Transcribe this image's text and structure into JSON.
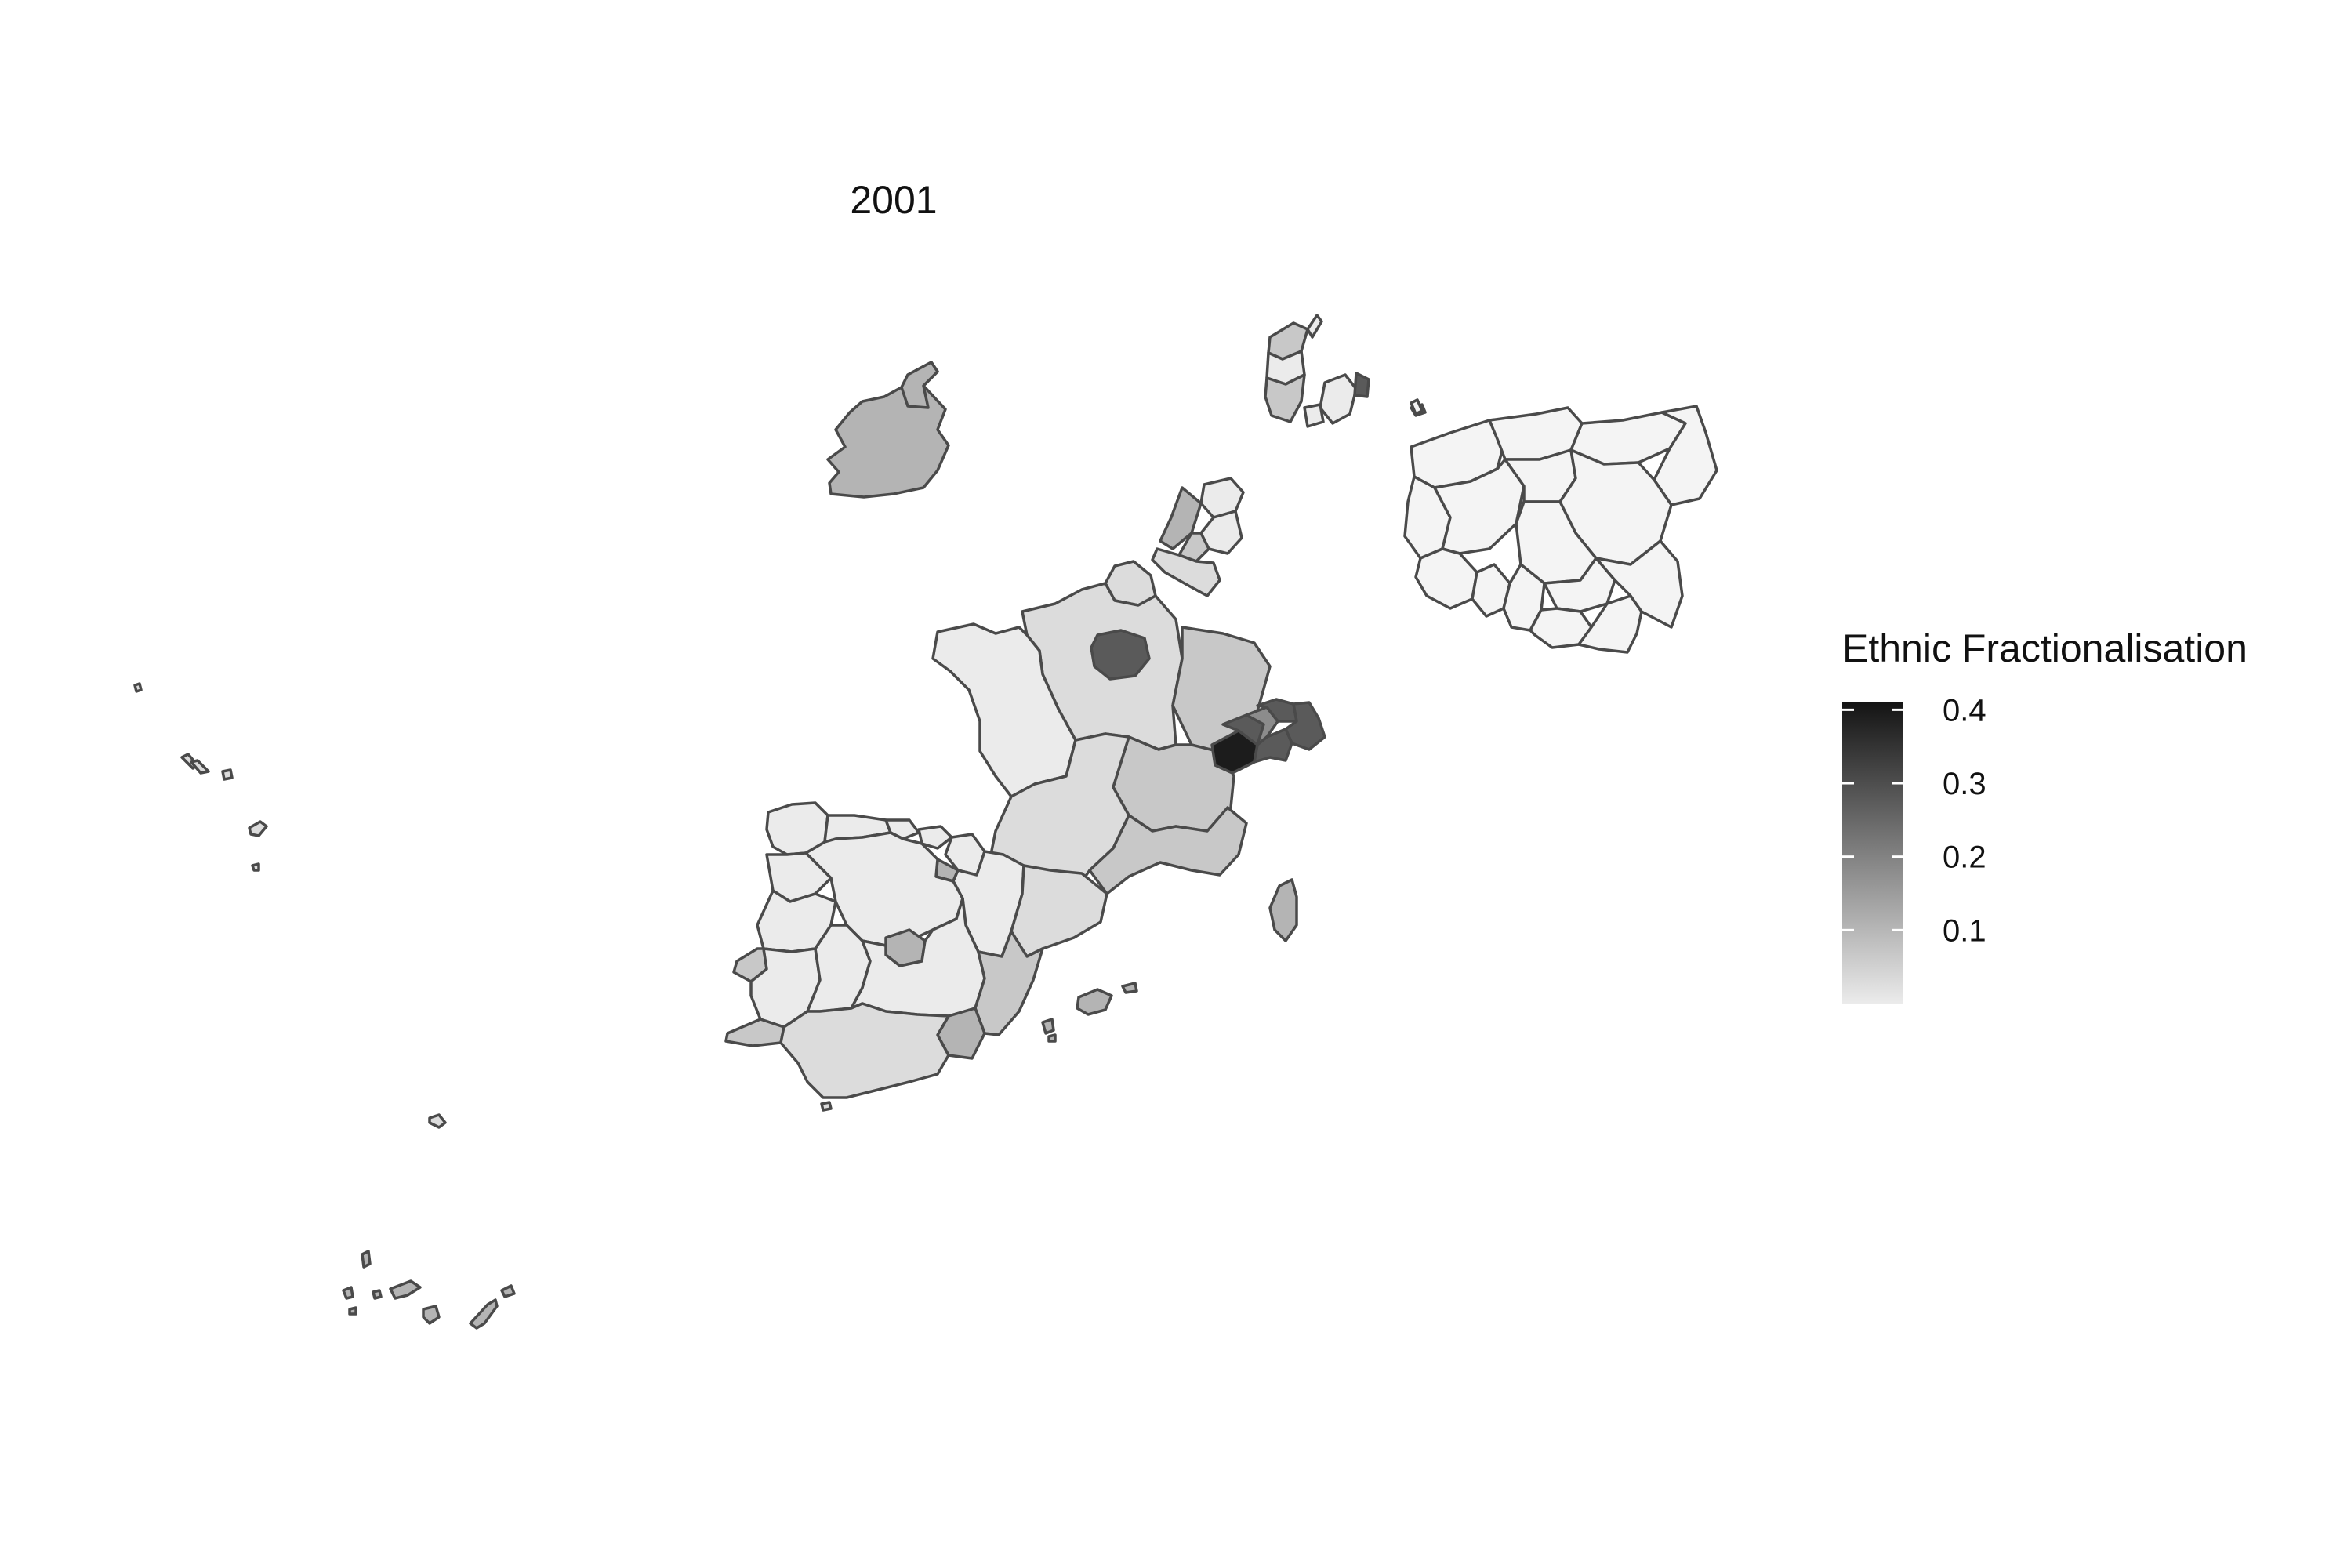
{
  "map": {
    "title": "2001",
    "legend": {
      "title": "Ethnic Fractionalisation",
      "ticks": [
        "0.1",
        "0.2",
        "0.3",
        "0.4"
      ],
      "range": [
        0,
        0.4
      ],
      "low_color": "#ebebeb",
      "high_color": "#141414"
    },
    "fills": {
      "lightest": "#f4f4f4",
      "very_light": "#ebebeb",
      "light": "#dcdcdc",
      "medium_light": "#c8c8c8",
      "medium": "#b4b4b4",
      "medium_dark": "#8c8c8c",
      "dark": "#5a5a5a",
      "darkest": "#1c1c1c"
    }
  }
}
